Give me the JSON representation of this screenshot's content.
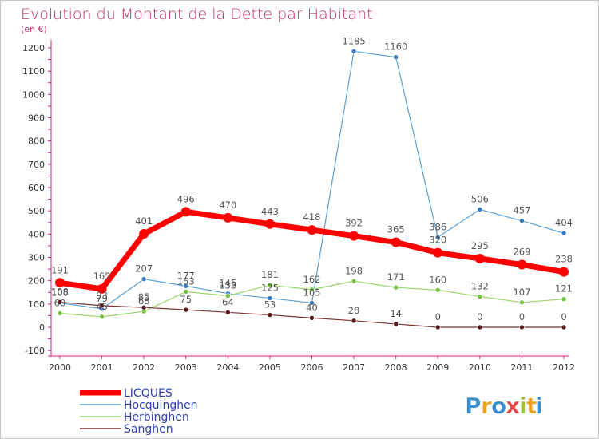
{
  "chart_data": {
    "type": "line",
    "title": "Evolution du Montant de la Dette par Habitant",
    "subtitle": "(en €)",
    "x": [
      "2000",
      "2001",
      "2002",
      "2003",
      "2004",
      "2005",
      "2006",
      "2007",
      "2008",
      "2009",
      "2010",
      "2011",
      "2012"
    ],
    "yticks": [
      -100,
      0,
      100,
      200,
      300,
      400,
      500,
      600,
      700,
      800,
      900,
      1000,
      1100,
      1200
    ],
    "ylim": [
      -100,
      1250
    ],
    "grid": false,
    "legend_position": "bottom-left",
    "series": [
      {
        "name": "Hocquinghen",
        "color": "#5a9fd4",
        "marker": "#3a7dc0",
        "width": 1.2,
        "values": [
          105,
          79,
          207,
          177,
          145,
          125,
          105,
          1185,
          1160,
          386,
          506,
          457,
          404
        ],
        "labels": [
          "105",
          "79",
          "207",
          "177",
          "145",
          "125",
          "105",
          "1185",
          "1160",
          "386",
          "506",
          "457",
          "404"
        ]
      },
      {
        "name": "Herbinghen",
        "color": "#9ad66a",
        "marker": "#78c040",
        "width": 1.2,
        "values": [
          60,
          45,
          68,
          153,
          135,
          181,
          162,
          198,
          171,
          160,
          132,
          107,
          121
        ],
        "labels": [
          "60",
          "45",
          "68",
          "153",
          "135",
          "181",
          "162",
          "198",
          "171",
          "160",
          "132",
          "107",
          "121"
        ]
      },
      {
        "name": "Sanghen",
        "color": "#7a3030",
        "marker": "#5a1a1a",
        "width": 1.2,
        "values": [
          108,
          93,
          85,
          75,
          64,
          53,
          40,
          28,
          14,
          0,
          0,
          0,
          0
        ],
        "labels": [
          "108",
          "93",
          "85",
          "75",
          "64",
          "53",
          "40",
          "28",
          "14",
          "0",
          "0",
          "0",
          "0"
        ]
      },
      {
        "name": "LICQUES",
        "color": "#ff0000",
        "marker": "#ff0000",
        "width": 7,
        "values": [
          191,
          165,
          401,
          496,
          470,
          443,
          418,
          392,
          365,
          320,
          295,
          269,
          238
        ],
        "labels": [
          "191",
          "165",
          "401",
          "496",
          "470",
          "443",
          "418",
          "392",
          "365",
          "320",
          "295",
          "269",
          "238"
        ]
      }
    ],
    "legend": [
      {
        "name": "LICQUES",
        "color": "#ff0000",
        "thick": true
      },
      {
        "name": "Hocquinghen",
        "color": "#5a9fd4",
        "thick": false
      },
      {
        "name": "Herbinghen",
        "color": "#9ad66a",
        "thick": false
      },
      {
        "name": "Sanghen",
        "color": "#7a3030",
        "thick": false
      }
    ]
  },
  "logo": {
    "letters": [
      "P",
      "r",
      "o",
      "x",
      "i",
      "t",
      "i"
    ],
    "colors": [
      "#3a8fd0",
      "#f0a020",
      "#3a8fd0",
      "#e84040",
      "#a0c040",
      "#f0a020",
      "#3a8fd0"
    ]
  }
}
